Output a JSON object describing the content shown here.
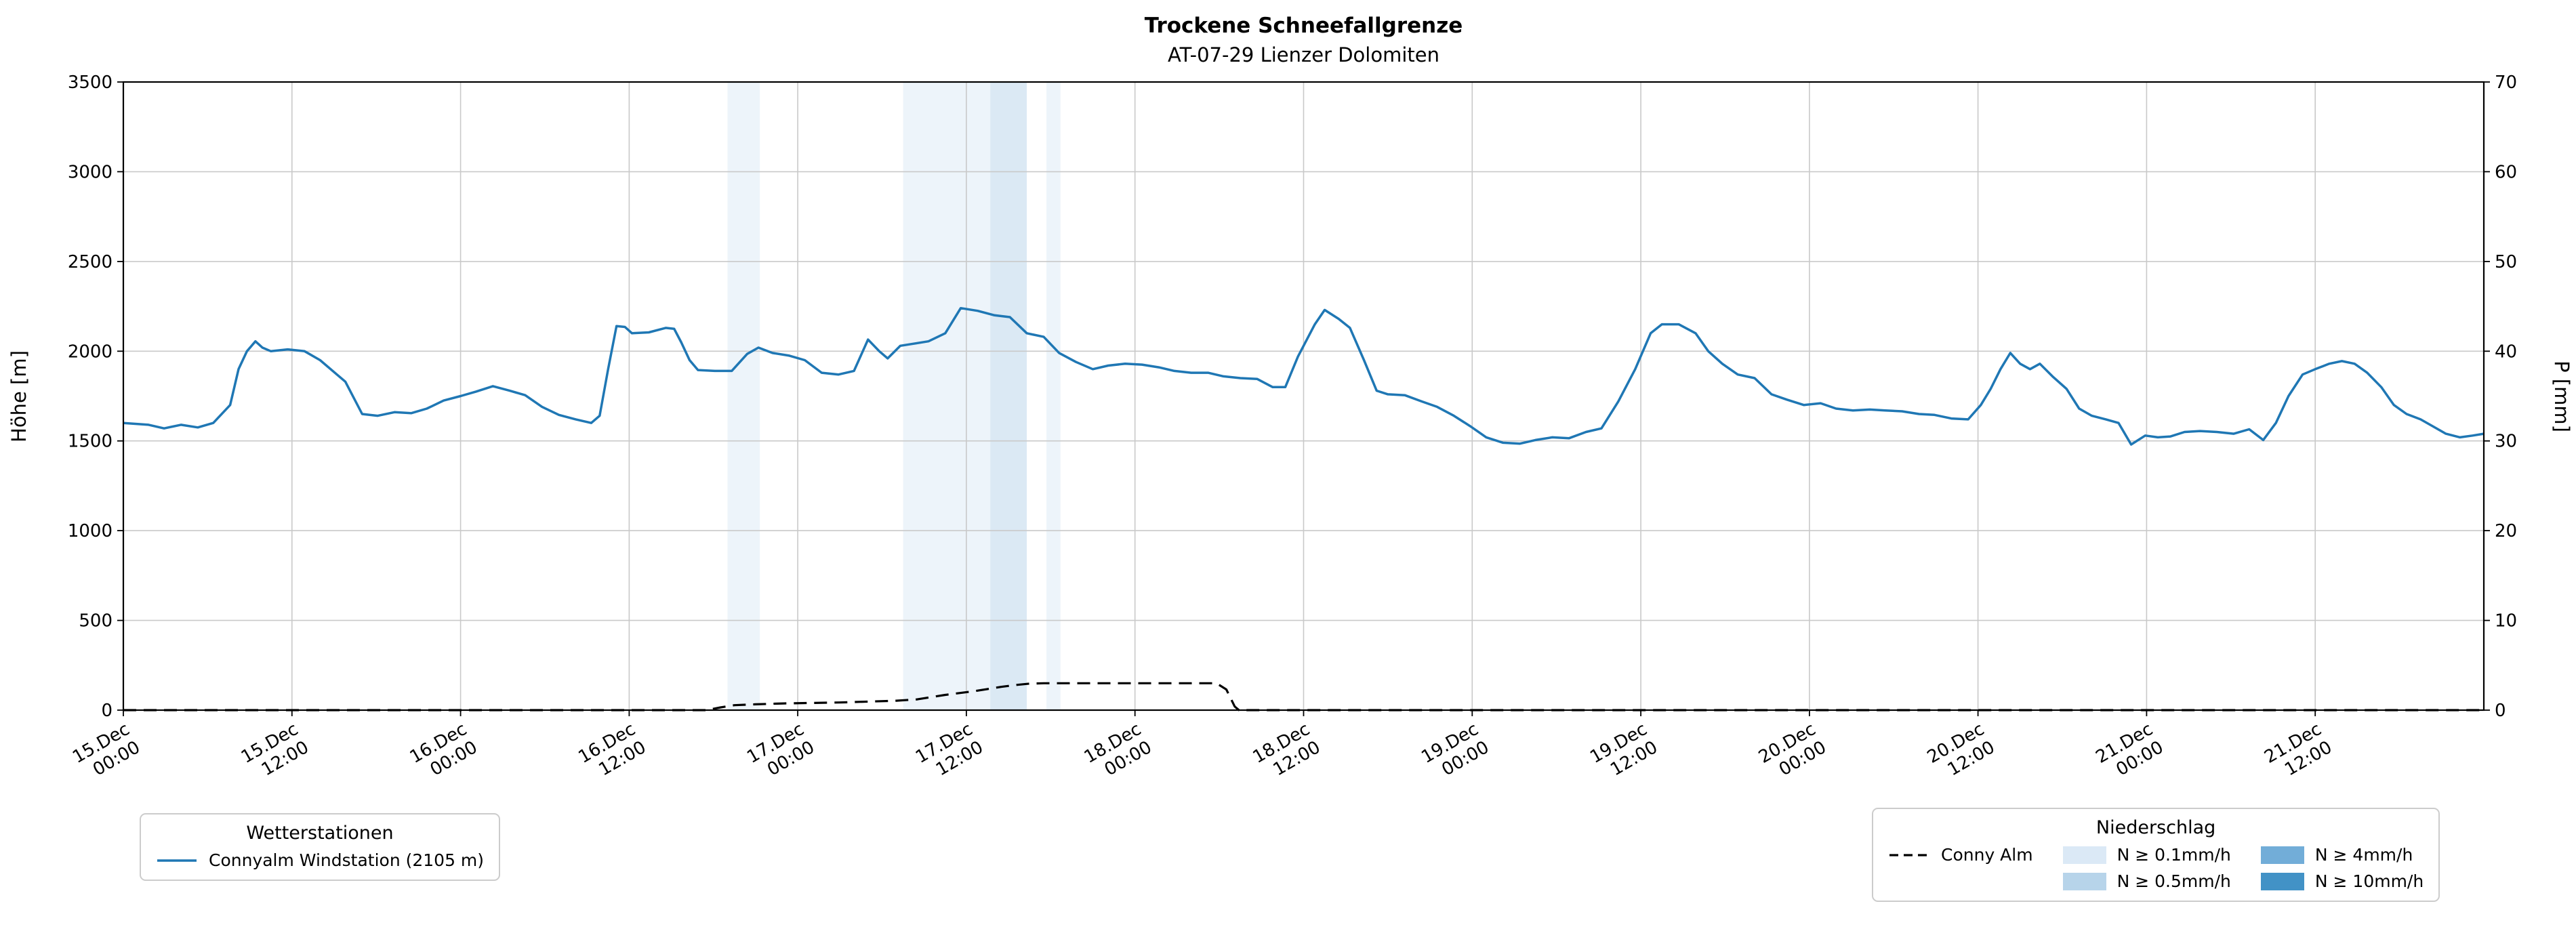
{
  "title": "Trockene Schneefallgrenze",
  "subtitle": "AT-07-29 Lienzer Dolomiten",
  "chart_data": {
    "type": "line",
    "title": "Trockene Schneefallgrenze",
    "subtitle": "AT-07-29 Lienzer Dolomiten",
    "grid": true,
    "x": {
      "unit": "hours since 15.Dec 00:00",
      "range_h": [
        0,
        168
      ],
      "tick_step_h": 12,
      "tick_labels": [
        [
          "15.Dec",
          "00:00"
        ],
        [
          "15.Dec",
          "12:00"
        ],
        [
          "16.Dec",
          "00:00"
        ],
        [
          "16.Dec",
          "12:00"
        ],
        [
          "17.Dec",
          "00:00"
        ],
        [
          "17.Dec",
          "12:00"
        ],
        [
          "18.Dec",
          "00:00"
        ],
        [
          "18.Dec",
          "12:00"
        ],
        [
          "19.Dec",
          "00:00"
        ],
        [
          "19.Dec",
          "12:00"
        ],
        [
          "20.Dec",
          "00:00"
        ],
        [
          "20.Dec",
          "12:00"
        ],
        [
          "21.Dec",
          "00:00"
        ],
        [
          "21.Dec",
          "12:00"
        ]
      ]
    },
    "y_left": {
      "label": "Höhe [m]",
      "range": [
        0,
        3500
      ],
      "ticks": [
        0,
        500,
        1000,
        1500,
        2000,
        2500,
        3000,
        3500
      ]
    },
    "y_right": {
      "label": "P [mm]",
      "range": [
        0,
        70
      ],
      "ticks": [
        0,
        10,
        20,
        30,
        40,
        50,
        60,
        70
      ]
    },
    "series": [
      {
        "name": "Connyalm Windstation (2105 m)",
        "data_name": "station-line",
        "axis": "left",
        "color": "#1f77b4",
        "style": "solid",
        "width": 3.5,
        "points": [
          [
            0,
            1600
          ],
          [
            1.8,
            1590
          ],
          [
            2.9,
            1570
          ],
          [
            4.1,
            1590
          ],
          [
            5.3,
            1575
          ],
          [
            6.4,
            1600
          ],
          [
            7.6,
            1700
          ],
          [
            8.2,
            1900
          ],
          [
            8.8,
            2000
          ],
          [
            9.4,
            2055
          ],
          [
            9.9,
            2020
          ],
          [
            10.5,
            2000
          ],
          [
            11.7,
            2010
          ],
          [
            12.9,
            2000
          ],
          [
            14,
            1950
          ],
          [
            15.2,
            1870
          ],
          [
            15.8,
            1830
          ],
          [
            17,
            1650
          ],
          [
            18.1,
            1640
          ],
          [
            19.3,
            1660
          ],
          [
            20.5,
            1655
          ],
          [
            21.6,
            1680
          ],
          [
            22.8,
            1725
          ],
          [
            24,
            1750
          ],
          [
            25.1,
            1775
          ],
          [
            26.3,
            1805
          ],
          [
            27.5,
            1780
          ],
          [
            28.6,
            1755
          ],
          [
            29.8,
            1690
          ],
          [
            31,
            1645
          ],
          [
            32.2,
            1620
          ],
          [
            33.3,
            1600
          ],
          [
            33.9,
            1640
          ],
          [
            34.5,
            1900
          ],
          [
            35.1,
            2140
          ],
          [
            35.7,
            2135
          ],
          [
            36.2,
            2100
          ],
          [
            37.4,
            2105
          ],
          [
            38.6,
            2130
          ],
          [
            39.2,
            2125
          ],
          [
            39.7,
            2050
          ],
          [
            40.3,
            1950
          ],
          [
            40.9,
            1895
          ],
          [
            42.1,
            1890
          ],
          [
            43.3,
            1890
          ],
          [
            44.4,
            1985
          ],
          [
            45.2,
            2020
          ],
          [
            46.2,
            1990
          ],
          [
            47.4,
            1975
          ],
          [
            48.5,
            1950
          ],
          [
            49.7,
            1880
          ],
          [
            50.9,
            1870
          ],
          [
            52,
            1890
          ],
          [
            53,
            2065
          ],
          [
            53.8,
            2000
          ],
          [
            54.4,
            1960
          ],
          [
            55.3,
            2030
          ],
          [
            56.1,
            2040
          ],
          [
            57.3,
            2055
          ],
          [
            58.5,
            2100
          ],
          [
            59.6,
            2240
          ],
          [
            60.8,
            2225
          ],
          [
            62,
            2200
          ],
          [
            63.1,
            2190
          ],
          [
            64.3,
            2100
          ],
          [
            65.5,
            2080
          ],
          [
            66.6,
            1990
          ],
          [
            67.8,
            1940
          ],
          [
            69,
            1900
          ],
          [
            70.1,
            1920
          ],
          [
            71.3,
            1930
          ],
          [
            72.5,
            1925
          ],
          [
            73.7,
            1910
          ],
          [
            74.8,
            1890
          ],
          [
            76,
            1880
          ],
          [
            77.2,
            1880
          ],
          [
            78.3,
            1860
          ],
          [
            79.5,
            1850
          ],
          [
            80.7,
            1845
          ],
          [
            81.8,
            1800
          ],
          [
            82.7,
            1800
          ],
          [
            83.6,
            1970
          ],
          [
            84.8,
            2150
          ],
          [
            85.5,
            2230
          ],
          [
            86.5,
            2180
          ],
          [
            87.3,
            2130
          ],
          [
            88.3,
            1950
          ],
          [
            89.2,
            1780
          ],
          [
            90,
            1760
          ],
          [
            91.2,
            1755
          ],
          [
            92.4,
            1720
          ],
          [
            93.5,
            1690
          ],
          [
            94.7,
            1640
          ],
          [
            95.9,
            1580
          ],
          [
            97,
            1520
          ],
          [
            98.2,
            1490
          ],
          [
            99.4,
            1485
          ],
          [
            100.5,
            1505
          ],
          [
            101.7,
            1520
          ],
          [
            102.9,
            1515
          ],
          [
            104.1,
            1550
          ],
          [
            105.2,
            1570
          ],
          [
            106.4,
            1720
          ],
          [
            107.6,
            1900
          ],
          [
            108.7,
            2100
          ],
          [
            109.5,
            2150
          ],
          [
            110.7,
            2150
          ],
          [
            111.9,
            2100
          ],
          [
            112.8,
            2000
          ],
          [
            113.8,
            1930
          ],
          [
            114.9,
            1870
          ],
          [
            116.1,
            1850
          ],
          [
            117.3,
            1760
          ],
          [
            118.4,
            1730
          ],
          [
            119.6,
            1700
          ],
          [
            120.8,
            1710
          ],
          [
            121.9,
            1680
          ],
          [
            123.1,
            1670
          ],
          [
            124.3,
            1675
          ],
          [
            125.4,
            1670
          ],
          [
            126.6,
            1665
          ],
          [
            127.8,
            1650
          ],
          [
            128.9,
            1645
          ],
          [
            130.1,
            1625
          ],
          [
            131.3,
            1620
          ],
          [
            132.2,
            1700
          ],
          [
            132.9,
            1790
          ],
          [
            133.6,
            1900
          ],
          [
            134.3,
            1990
          ],
          [
            135,
            1930
          ],
          [
            135.7,
            1900
          ],
          [
            136.4,
            1930
          ],
          [
            137.3,
            1860
          ],
          [
            138.3,
            1790
          ],
          [
            139.2,
            1680
          ],
          [
            140.1,
            1640
          ],
          [
            141.1,
            1620
          ],
          [
            142,
            1600
          ],
          [
            142.9,
            1480
          ],
          [
            143.9,
            1530
          ],
          [
            144.8,
            1520
          ],
          [
            145.7,
            1525
          ],
          [
            146.7,
            1550
          ],
          [
            147.8,
            1555
          ],
          [
            149,
            1550
          ],
          [
            150.2,
            1540
          ],
          [
            151.3,
            1565
          ],
          [
            152.3,
            1505
          ],
          [
            153.2,
            1600
          ],
          [
            154.1,
            1750
          ],
          [
            155.1,
            1870
          ],
          [
            156,
            1900
          ],
          [
            157,
            1930
          ],
          [
            157.9,
            1945
          ],
          [
            158.8,
            1930
          ],
          [
            159.7,
            1880
          ],
          [
            160.7,
            1800
          ],
          [
            161.6,
            1700
          ],
          [
            162.5,
            1650
          ],
          [
            163.5,
            1620
          ],
          [
            164.4,
            1580
          ],
          [
            165.3,
            1540
          ],
          [
            166.3,
            1520
          ],
          [
            167.2,
            1530
          ],
          [
            168,
            1540
          ]
        ]
      },
      {
        "name": "Conny Alm",
        "data_name": "precip-line",
        "axis": "right",
        "color": "#000000",
        "style": "dashed",
        "width": 3.2,
        "points": [
          [
            0,
            0
          ],
          [
            41.5,
            0
          ],
          [
            42.5,
            0.3
          ],
          [
            43.5,
            0.55
          ],
          [
            45,
            0.65
          ],
          [
            47,
            0.75
          ],
          [
            49,
            0.8
          ],
          [
            51,
            0.85
          ],
          [
            53,
            0.95
          ],
          [
            55,
            1.05
          ],
          [
            56.5,
            1.2
          ],
          [
            57.5,
            1.45
          ],
          [
            58.5,
            1.7
          ],
          [
            59.5,
            1.9
          ],
          [
            60.5,
            2.1
          ],
          [
            61.5,
            2.35
          ],
          [
            62.5,
            2.6
          ],
          [
            63.5,
            2.8
          ],
          [
            64.5,
            2.95
          ],
          [
            65.5,
            3.0
          ],
          [
            77.8,
            3.0
          ],
          [
            78.5,
            2.3
          ],
          [
            79.1,
            0.4
          ],
          [
            79.4,
            0
          ],
          [
            168,
            0
          ]
        ]
      }
    ],
    "precip_bands": [
      {
        "start_h": 43.0,
        "end_h": 45.3,
        "level": "0.1"
      },
      {
        "start_h": 55.5,
        "end_h": 61.7,
        "level": "0.1"
      },
      {
        "start_h": 61.7,
        "end_h": 64.3,
        "level": "0.5"
      },
      {
        "start_h": 65.7,
        "end_h": 66.7,
        "level": "0.1"
      }
    ],
    "band_colors": {
      "0.1": "#dbe9f6",
      "0.5": "#b7d4ea",
      "4": "#72add8",
      "10": "#4292c6"
    }
  },
  "legend_stations": {
    "title": "Wetterstationen",
    "entries": [
      {
        "label": "Connyalm Windstation (2105 m)",
        "color": "#1f77b4",
        "style": "solid"
      }
    ]
  },
  "legend_precip": {
    "title": "Niederschlag",
    "line_entry": {
      "label": "Conny Alm",
      "color": "#000000",
      "style": "dashed"
    },
    "swatches": [
      {
        "label": "N ≥ 0.1mm/h",
        "color": "#dbe9f6"
      },
      {
        "label": "N ≥ 0.5mm/h",
        "color": "#b7d4ea"
      },
      {
        "label": "N ≥ 4mm/h",
        "color": "#72add8"
      },
      {
        "label": "N ≥ 10mm/h",
        "color": "#4292c6"
      }
    ]
  }
}
